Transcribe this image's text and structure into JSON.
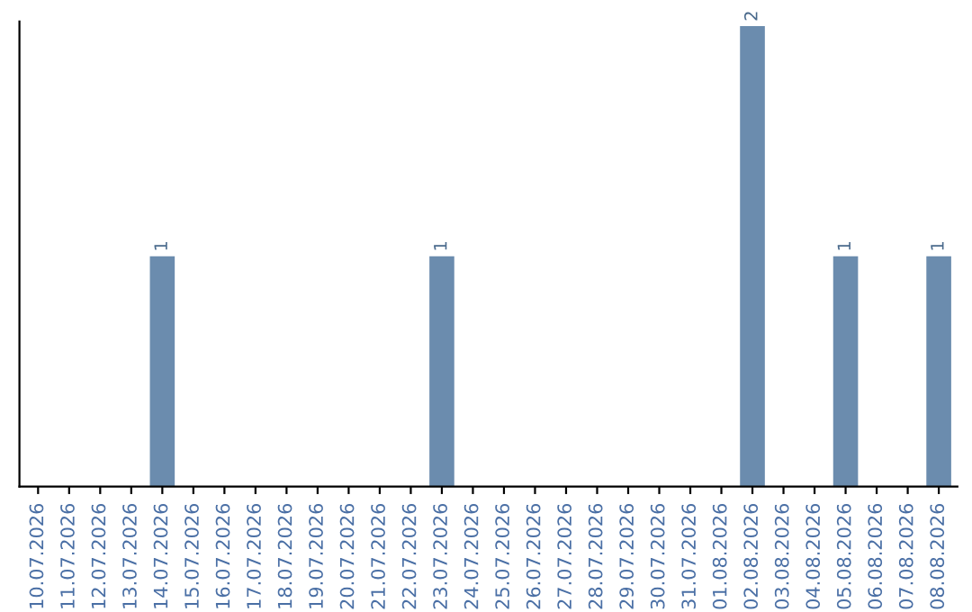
{
  "chart_data": {
    "type": "bar",
    "categories": [
      "10.07.2026",
      "11.07.2026",
      "12.07.2026",
      "13.07.2026",
      "14.07.2026",
      "15.07.2026",
      "16.07.2026",
      "17.07.2026",
      "18.07.2026",
      "19.07.2026",
      "20.07.2026",
      "21.07.2026",
      "22.07.2026",
      "23.07.2026",
      "24.07.2026",
      "25.07.2026",
      "26.07.2026",
      "27.07.2026",
      "28.07.2026",
      "29.07.2026",
      "30.07.2026",
      "31.07.2026",
      "01.08.2026",
      "02.08.2026",
      "03.08.2026",
      "04.08.2026",
      "05.08.2026",
      "06.08.2026",
      "07.08.2026",
      "08.08.2026"
    ],
    "values": [
      0,
      0,
      0,
      0,
      1,
      0,
      0,
      0,
      0,
      0,
      0,
      0,
      0,
      1,
      0,
      0,
      0,
      0,
      0,
      0,
      0,
      0,
      0,
      2,
      0,
      0,
      1,
      0,
      0,
      1
    ],
    "value_labels": [
      null,
      null,
      null,
      null,
      "1",
      null,
      null,
      null,
      null,
      null,
      null,
      null,
      null,
      "1",
      null,
      null,
      null,
      null,
      null,
      null,
      null,
      null,
      null,
      "2",
      null,
      null,
      "1",
      null,
      null,
      "1"
    ],
    "color": "#6b8cae",
    "tick_labels": "x",
    "grid": false,
    "legend": false
  }
}
